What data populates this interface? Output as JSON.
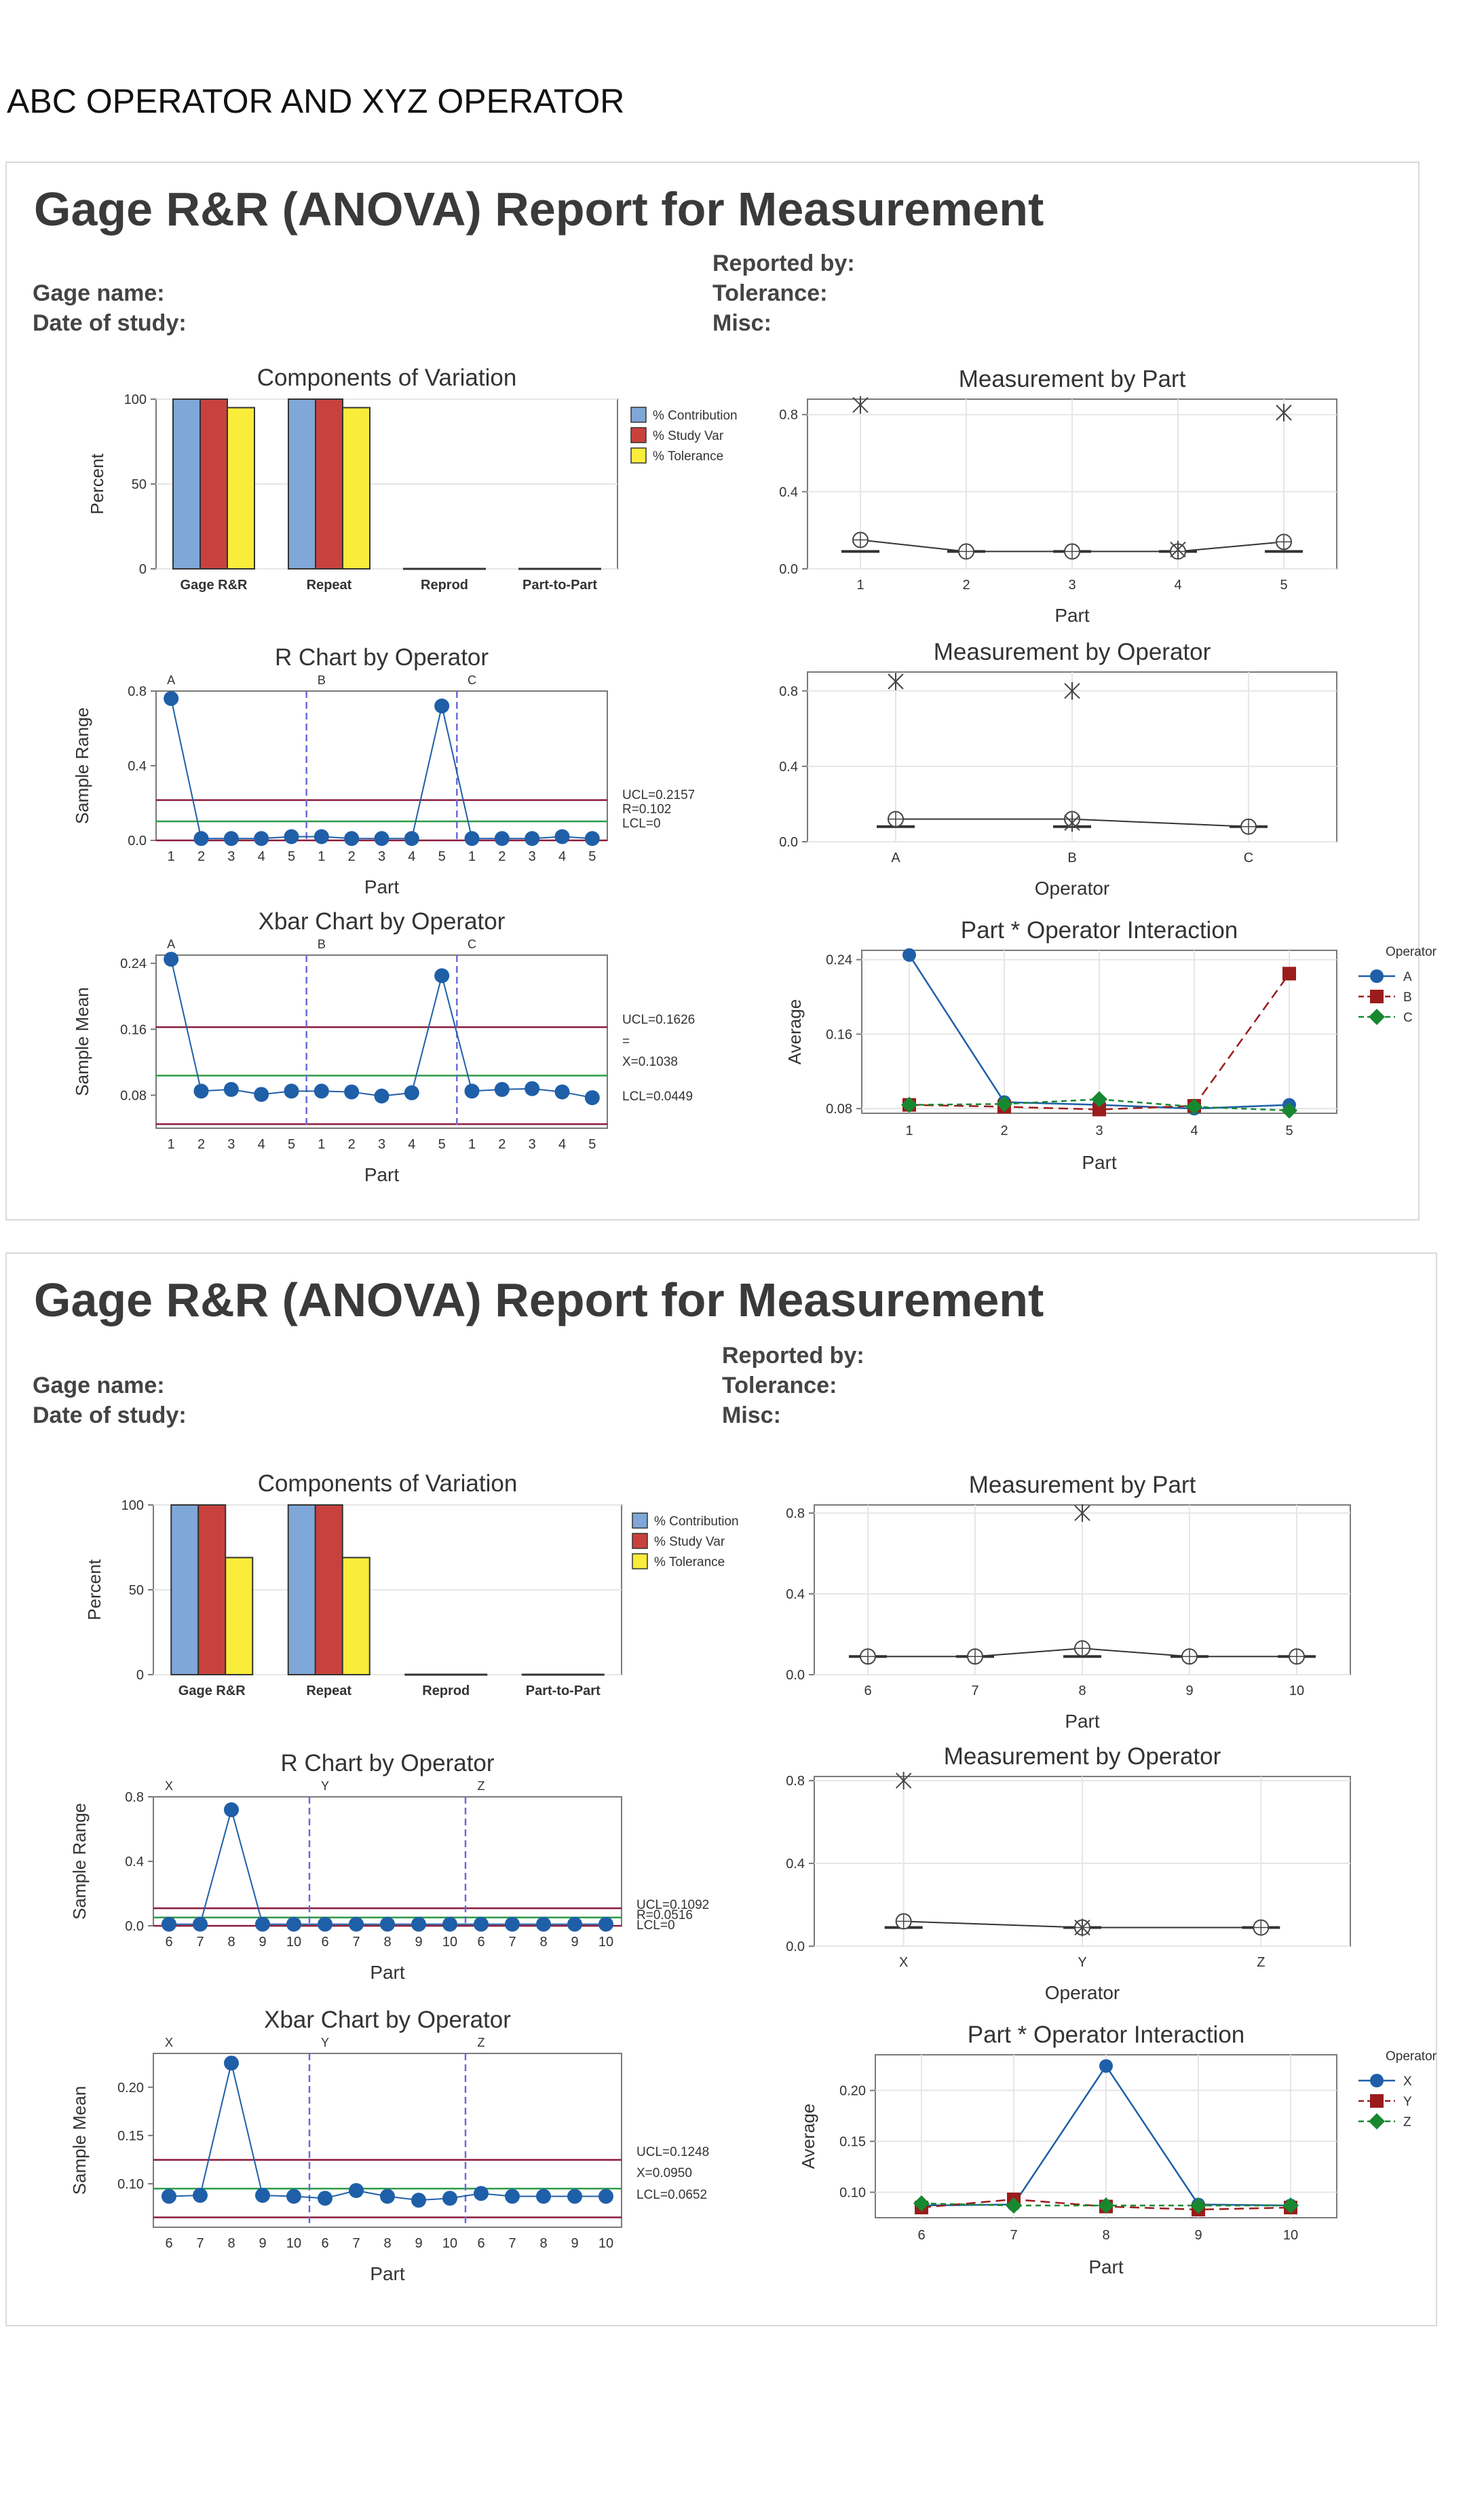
{
  "document": {
    "title": "ABC OPERATOR AND XYZ OPERATOR"
  },
  "colors": {
    "blue": "#1f5fa8",
    "darkred": "#9b1c1c",
    "green": "#17882f",
    "limit": "#8b1a3a",
    "center": "#2e9a46",
    "bar_contribution": "#7fa7d8",
    "bar_studyvar": "#c9413d",
    "bar_tolerance": "#f9ec3b",
    "divider": "#6b6bd6",
    "frame": "#7a7a7a",
    "grid": "#e6e6e6"
  },
  "reports": [
    {
      "title": "Gage R&R (ANOVA) Report for Measurement",
      "meta_left": [
        "Gage name:",
        "Date of study:"
      ],
      "meta_right": [
        "Reported by:",
        "Tolerance:",
        "Misc:"
      ],
      "legend_title": "Operator",
      "operators": [
        "A",
        "B",
        "C"
      ],
      "parts": [
        "1",
        "2",
        "3",
        "4",
        "5"
      ]
    },
    {
      "title": "Gage R&R (ANOVA) Report for Measurement",
      "meta_left": [
        "Gage name:",
        "Date of study:"
      ],
      "meta_right": [
        "Reported by:",
        "Tolerance:",
        "Misc:"
      ],
      "legend_title": "Operator",
      "operators": [
        "X",
        "Y",
        "Z"
      ],
      "parts": [
        "6",
        "7",
        "8",
        "9",
        "10"
      ]
    }
  ],
  "chart_data": [
    {
      "type": "bar",
      "title": "Components of Variation",
      "ylabel": "Percent",
      "categories": [
        "Gage R&R",
        "Repeat",
        "Reprod",
        "Part-to-Part"
      ],
      "series": [
        {
          "name": "% Contribution",
          "values": [
            100,
            100,
            0.2,
            0.2
          ]
        },
        {
          "name": "% Study Var",
          "values": [
            100,
            100,
            0.2,
            0.2
          ]
        },
        {
          "name": "% Tolerance",
          "values": [
            95,
            95,
            0.2,
            0.2
          ]
        }
      ],
      "ylim": [
        0,
        100
      ],
      "yticks": [
        0,
        50,
        100
      ],
      "legend": "right",
      "grid": true
    },
    {
      "type": "line",
      "title": "R Chart by Operator",
      "xlabel": "Part",
      "ylabel": "Sample Range",
      "groups": [
        "A",
        "B",
        "C"
      ],
      "x": [
        "1",
        "2",
        "3",
        "4",
        "5",
        "1",
        "2",
        "3",
        "4",
        "5",
        "1",
        "2",
        "3",
        "4",
        "5"
      ],
      "values": [
        0.76,
        0.01,
        0.01,
        0.01,
        0.02,
        0.02,
        0.01,
        0.01,
        0.01,
        0.72,
        0.01,
        0.01,
        0.01,
        0.02,
        0.01
      ],
      "ucl": 0.2157,
      "center": 0.102,
      "lcl": 0,
      "limit_labels": [
        "UCL=0.2157",
        "R=0.102",
        "LCL=0"
      ],
      "ylim": [
        0,
        0.8
      ],
      "yticks": [
        0.0,
        0.4,
        0.8
      ]
    },
    {
      "type": "line",
      "title": "Xbar Chart by Operator",
      "xlabel": "Part",
      "ylabel": "Sample Mean",
      "groups": [
        "A",
        "B",
        "C"
      ],
      "x": [
        "1",
        "2",
        "3",
        "4",
        "5",
        "1",
        "2",
        "3",
        "4",
        "5",
        "1",
        "2",
        "3",
        "4",
        "5"
      ],
      "values": [
        0.245,
        0.085,
        0.087,
        0.081,
        0.085,
        0.085,
        0.084,
        0.079,
        0.083,
        0.225,
        0.085,
        0.087,
        0.088,
        0.084,
        0.077
      ],
      "ucl": 0.1626,
      "center": 0.1038,
      "lcl": 0.0449,
      "limit_labels": [
        "UCL=0.1626",
        "=",
        "X=0.1038",
        "LCL=0.0449"
      ],
      "ylim": [
        0.04,
        0.25
      ],
      "yticks": [
        0.08,
        0.16,
        0.24
      ]
    },
    {
      "type": "box",
      "title": "Measurement by Part",
      "xlabel": "Part",
      "categories": [
        "1",
        "2",
        "3",
        "4",
        "5"
      ],
      "means": [
        0.15,
        0.09,
        0.09,
        0.09,
        0.14
      ],
      "medians": [
        0.09,
        0.09,
        0.09,
        0.09,
        0.09
      ],
      "outliers": [
        [
          0.85
        ],
        [],
        [],
        [
          0.1
        ],
        [
          0.81
        ]
      ],
      "ylim": [
        0,
        0.88
      ],
      "yticks": [
        0.0,
        0.4,
        0.8
      ]
    },
    {
      "type": "box",
      "title": "Measurement by Operator",
      "xlabel": "Operator",
      "categories": [
        "A",
        "B",
        "C"
      ],
      "means": [
        0.12,
        0.12,
        0.08
      ],
      "medians": [
        0.08,
        0.08,
        0.08
      ],
      "outliers": [
        [
          0.85
        ],
        [
          0.8,
          0.1
        ],
        []
      ],
      "ylim": [
        0,
        0.9
      ],
      "yticks": [
        0.0,
        0.4,
        0.8
      ]
    },
    {
      "type": "line",
      "title": "Part * Operator Interaction",
      "xlabel": "Part",
      "ylabel": "Average",
      "x": [
        "1",
        "2",
        "3",
        "4",
        "5"
      ],
      "series": [
        {
          "name": "A",
          "values": [
            0.245,
            0.087,
            0.084,
            0.08,
            0.084
          ]
        },
        {
          "name": "B",
          "values": [
            0.084,
            0.082,
            0.079,
            0.083,
            0.225
          ]
        },
        {
          "name": "C",
          "values": [
            0.084,
            0.085,
            0.09,
            0.082,
            0.078
          ]
        }
      ],
      "legend": "right",
      "ylim": [
        0.075,
        0.25
      ],
      "yticks": [
        0.08,
        0.16,
        0.24
      ]
    },
    {
      "type": "bar",
      "title": "Components of Variation",
      "ylabel": "Percent",
      "categories": [
        "Gage R&R",
        "Repeat",
        "Reprod",
        "Part-to-Part"
      ],
      "series": [
        {
          "name": "% Contribution",
          "values": [
            100,
            100,
            0.2,
            0.2
          ]
        },
        {
          "name": "% Study Var",
          "values": [
            100,
            100,
            0.2,
            0.2
          ]
        },
        {
          "name": "% Tolerance",
          "values": [
            69,
            69,
            0.2,
            0.2
          ]
        }
      ],
      "ylim": [
        0,
        100
      ],
      "yticks": [
        0,
        50,
        100
      ],
      "legend": "right",
      "grid": true
    },
    {
      "type": "line",
      "title": "R Chart by Operator",
      "xlabel": "Part",
      "ylabel": "Sample Range",
      "groups": [
        "X",
        "Y",
        "Z"
      ],
      "x": [
        "6",
        "7",
        "8",
        "9",
        "10",
        "6",
        "7",
        "8",
        "9",
        "10",
        "6",
        "7",
        "8",
        "9",
        "10"
      ],
      "values": [
        0.01,
        0.01,
        0.72,
        0.01,
        0.01,
        0.01,
        0.01,
        0.01,
        0.01,
        0.01,
        0.01,
        0.01,
        0.01,
        0.01,
        0.01
      ],
      "ucl": 0.1092,
      "center": 0.0516,
      "lcl": 0,
      "limit_labels": [
        "UCL=0.1092",
        "R=0.0516",
        "LCL=0"
      ],
      "ylim": [
        0,
        0.8
      ],
      "yticks": [
        0.0,
        0.4,
        0.8
      ]
    },
    {
      "type": "line",
      "title": "Xbar Chart by Operator",
      "xlabel": "Part",
      "ylabel": "Sample Mean",
      "groups": [
        "X",
        "Y",
        "Z"
      ],
      "x": [
        "6",
        "7",
        "8",
        "9",
        "10",
        "6",
        "7",
        "8",
        "9",
        "10",
        "6",
        "7",
        "8",
        "9",
        "10"
      ],
      "values": [
        0.087,
        0.088,
        0.225,
        0.088,
        0.087,
        0.085,
        0.093,
        0.087,
        0.083,
        0.085,
        0.09,
        0.087,
        0.087,
        0.087,
        0.087
      ],
      "ucl": 0.1248,
      "center": 0.095,
      "lcl": 0.0652,
      "limit_labels": [
        "UCL=0.1248",
        "X=0.0950",
        "LCL=0.0652"
      ],
      "ylim": [
        0.055,
        0.235
      ],
      "yticks": [
        0.1,
        0.15,
        0.2
      ]
    },
    {
      "type": "box",
      "title": "Measurement by Part",
      "xlabel": "Part",
      "categories": [
        "6",
        "7",
        "8",
        "9",
        "10"
      ],
      "means": [
        0.09,
        0.09,
        0.13,
        0.09,
        0.09
      ],
      "medians": [
        0.09,
        0.09,
        0.09,
        0.09,
        0.09
      ],
      "outliers": [
        [],
        [],
        [
          0.8
        ],
        [],
        []
      ],
      "ylim": [
        0,
        0.84
      ],
      "yticks": [
        0.0,
        0.4,
        0.8
      ]
    },
    {
      "type": "box",
      "title": "Measurement by Operator",
      "xlabel": "Operator",
      "categories": [
        "X",
        "Y",
        "Z"
      ],
      "means": [
        0.12,
        0.09,
        0.09
      ],
      "medians": [
        0.09,
        0.09,
        0.09
      ],
      "outliers": [
        [
          0.8
        ],
        [
          0.09
        ],
        []
      ],
      "ylim": [
        0,
        0.82
      ],
      "yticks": [
        0.0,
        0.4,
        0.8
      ]
    },
    {
      "type": "line",
      "title": "Part * Operator Interaction",
      "xlabel": "Part",
      "ylabel": "Average",
      "x": [
        "6",
        "7",
        "8",
        "9",
        "10"
      ],
      "series": [
        {
          "name": "X",
          "values": [
            0.087,
            0.088,
            0.224,
            0.088,
            0.087
          ]
        },
        {
          "name": "Y",
          "values": [
            0.085,
            0.093,
            0.086,
            0.083,
            0.085
          ]
        },
        {
          "name": "Z",
          "values": [
            0.089,
            0.087,
            0.087,
            0.087,
            0.087
          ]
        }
      ],
      "legend": "right",
      "ylim": [
        0.075,
        0.235
      ],
      "yticks": [
        0.1,
        0.15,
        0.2
      ]
    }
  ]
}
